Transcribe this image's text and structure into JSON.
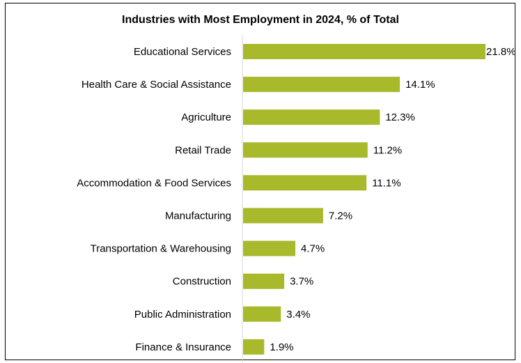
{
  "chart_data": {
    "type": "bar",
    "orientation": "horizontal",
    "title": "Industries with Most Employment in 2024, % of Total",
    "categories": [
      "Educational Services",
      "Health Care & Social Assistance",
      "Agriculture",
      "Retail Trade",
      "Accommodation & Food Services",
      "Manufacturing",
      "Transportation & Warehousing",
      "Construction",
      "Public Administration",
      "Finance & Insurance"
    ],
    "values": [
      21.8,
      14.1,
      12.3,
      11.2,
      11.1,
      7.2,
      4.7,
      3.7,
      3.4,
      1.9
    ],
    "value_labels": [
      "21.8%",
      "14.1%",
      "12.3%",
      "11.2%",
      "11.1%",
      "7.2%",
      "4.7%",
      "3.7%",
      "3.4%",
      "1.9%"
    ],
    "xlim": [
      0,
      21.8
    ],
    "bar_color": "#a9b92c",
    "grid": false,
    "legend": "none"
  }
}
